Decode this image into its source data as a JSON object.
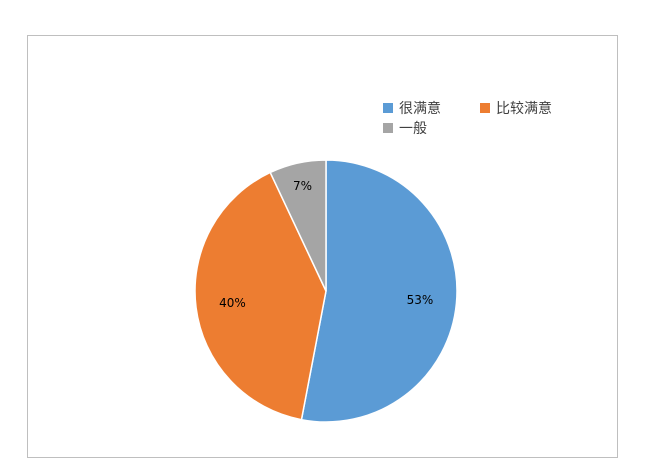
{
  "chart_data": {
    "type": "pie",
    "start_angle": "top",
    "direction": "clockwise",
    "slices": [
      {
        "name": "很满意",
        "value": 53,
        "label": "53%",
        "color": "#5b9bd5"
      },
      {
        "name": "比较满意",
        "value": 40,
        "label": "40%",
        "color": "#ed7d31"
      },
      {
        "name": "一般",
        "value": 7,
        "label": "7%",
        "color": "#a5a5a5"
      }
    ],
    "legend_position": "top-right"
  }
}
